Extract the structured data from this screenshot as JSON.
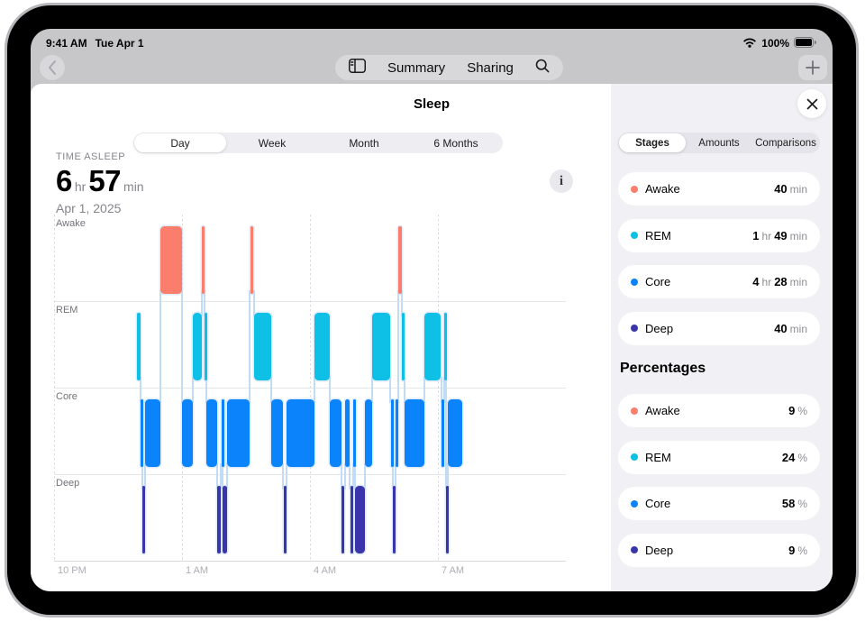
{
  "status_bar": {
    "time": "9:41 AM",
    "date": "Tue Apr 1",
    "battery": "100%"
  },
  "nav": {
    "summary": "Summary",
    "sharing": "Sharing"
  },
  "sheet": {
    "title": "Sleep",
    "tabs": [
      "Day",
      "Week",
      "Month",
      "6 Months"
    ],
    "selected_tab": "Day",
    "metric": {
      "label": "TIME ASLEEP",
      "hours": "6",
      "hr_unit": "hr",
      "minutes": "57",
      "min_unit": "min",
      "date": "Apr 1, 2025"
    }
  },
  "panel": {
    "tabs": [
      "Stages",
      "Amounts",
      "Comparisons"
    ],
    "selected_tab": "Stages",
    "stages": [
      {
        "name": "Awake",
        "stage": "Awake",
        "value": [
          [
            "40",
            1
          ],
          [
            "min",
            0
          ]
        ]
      },
      {
        "name": "REM",
        "stage": "REM",
        "value": [
          [
            "1",
            1
          ],
          [
            "hr",
            0
          ],
          [
            "49",
            1
          ],
          [
            "min",
            0
          ]
        ]
      },
      {
        "name": "Core",
        "stage": "Core",
        "value": [
          [
            "4",
            1
          ],
          [
            "hr",
            0
          ],
          [
            "28",
            1
          ],
          [
            "min",
            0
          ]
        ]
      },
      {
        "name": "Deep",
        "stage": "Deep",
        "value": [
          [
            "40",
            1
          ],
          [
            "min",
            0
          ]
        ]
      }
    ],
    "percent_header": "Percentages",
    "percentages": [
      {
        "name": "Awake",
        "stage": "Awake",
        "value": [
          [
            "9",
            1
          ],
          [
            "%",
            0
          ]
        ]
      },
      {
        "name": "REM",
        "stage": "REM",
        "value": [
          [
            "24",
            1
          ],
          [
            "%",
            0
          ]
        ]
      },
      {
        "name": "Core",
        "stage": "Core",
        "value": [
          [
            "58",
            1
          ],
          [
            "%",
            0
          ]
        ]
      },
      {
        "name": "Deep",
        "stage": "Deep",
        "value": [
          [
            "9",
            1
          ],
          [
            "%",
            0
          ]
        ]
      }
    ]
  },
  "colors": {
    "Awake": "#FB7D6C",
    "REM": "#0FC0E6",
    "Core": "#0A83FB",
    "Deep": "#3B35AB",
    "connector": "#C3DCF6"
  },
  "chart_data": {
    "type": "timeline",
    "title": "Sleep stages, Apr 1, 2025",
    "rows": [
      "Awake",
      "REM",
      "Core",
      "Deep"
    ],
    "x_axis": {
      "ticks": [
        "10 PM",
        "1 AM",
        "4 AM",
        "7 AM"
      ],
      "tick_hours": [
        0,
        3,
        6,
        9
      ],
      "hours_span": 12,
      "origin": "10 PM"
    },
    "segments": [
      {
        "stage": "REM",
        "start": 1.94,
        "end": 2.02
      },
      {
        "stage": "Core",
        "start": 2.02,
        "end": 2.07
      },
      {
        "stage": "Deep",
        "start": 2.07,
        "end": 2.13
      },
      {
        "stage": "Core",
        "start": 2.13,
        "end": 2.5
      },
      {
        "stage": "Awake",
        "start": 2.5,
        "end": 3.01
      },
      {
        "stage": "Core",
        "start": 3.01,
        "end": 3.25
      },
      {
        "stage": "REM",
        "start": 3.25,
        "end": 3.47
      },
      {
        "stage": "Awake",
        "start": 3.47,
        "end": 3.52
      },
      {
        "stage": "REM",
        "start": 3.52,
        "end": 3.57
      },
      {
        "stage": "Core",
        "start": 3.58,
        "end": 3.83
      },
      {
        "stage": "Deep",
        "start": 3.83,
        "end": 3.91
      },
      {
        "stage": "Core",
        "start": 3.92,
        "end": 3.96
      },
      {
        "stage": "Deep",
        "start": 3.96,
        "end": 4.05
      },
      {
        "stage": "Core",
        "start": 4.05,
        "end": 4.59
      },
      {
        "stage": "Awake",
        "start": 4.6,
        "end": 4.67
      },
      {
        "stage": "REM",
        "start": 4.7,
        "end": 5.1
      },
      {
        "stage": "Core",
        "start": 5.1,
        "end": 5.37
      },
      {
        "stage": "Deep",
        "start": 5.38,
        "end": 5.45
      },
      {
        "stage": "Core",
        "start": 5.46,
        "end": 6.1
      },
      {
        "stage": "REM",
        "start": 6.1,
        "end": 6.46
      },
      {
        "stage": "Core",
        "start": 6.47,
        "end": 6.73
      },
      {
        "stage": "Deep",
        "start": 6.74,
        "end": 6.81
      },
      {
        "stage": "Core",
        "start": 6.82,
        "end": 6.93
      },
      {
        "stage": "Deep",
        "start": 6.95,
        "end": 7.02
      },
      {
        "stage": "Core",
        "start": 7.02,
        "end": 7.06
      },
      {
        "stage": "Deep",
        "start": 7.06,
        "end": 7.29
      },
      {
        "stage": "Core",
        "start": 7.29,
        "end": 7.45
      },
      {
        "stage": "REM",
        "start": 7.46,
        "end": 7.88
      },
      {
        "stage": "Core",
        "start": 7.9,
        "end": 7.94
      },
      {
        "stage": "Deep",
        "start": 7.94,
        "end": 8.0
      },
      {
        "stage": "Core",
        "start": 8.0,
        "end": 8.06
      },
      {
        "stage": "Awake",
        "start": 8.07,
        "end": 8.15
      },
      {
        "stage": "REM",
        "start": 8.16,
        "end": 8.21
      },
      {
        "stage": "Core",
        "start": 8.21,
        "end": 8.68
      },
      {
        "stage": "REM",
        "start": 8.69,
        "end": 9.07
      },
      {
        "stage": "Core",
        "start": 9.08,
        "end": 9.14
      },
      {
        "stage": "REM",
        "start": 9.14,
        "end": 9.19
      },
      {
        "stage": "Deep",
        "start": 9.19,
        "end": 9.24
      },
      {
        "stage": "Core",
        "start": 9.24,
        "end": 9.57
      }
    ]
  }
}
